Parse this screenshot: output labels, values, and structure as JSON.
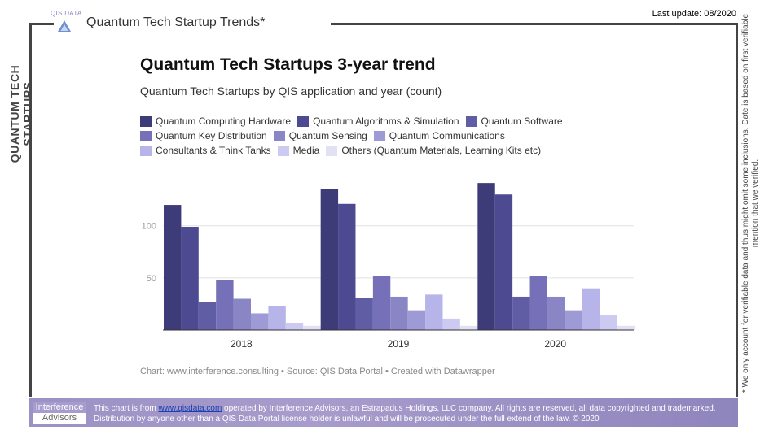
{
  "header": {
    "logo_text": "QIS DATA",
    "title": "Quantum Tech Startup Trends*",
    "last_update": "Last update: 08/2020"
  },
  "side_title": "QUANTUM TECH STARTUPS",
  "side_note": "* We only account for verifiable data and thus might omit some inclusions. Date is based on first verifiable mention that we verified.",
  "chart_data": {
    "type": "bar",
    "title": "Quantum Tech Startups 3-year trend",
    "subtitle": "Quantum Tech Startups by QIS application and year (count)",
    "categories": [
      "2018",
      "2019",
      "2020"
    ],
    "ylim": [
      0,
      145
    ],
    "yticks": [
      50,
      100
    ],
    "grid": true,
    "legend_position": "top",
    "series": [
      {
        "name": "Quantum Computing Hardware",
        "color": "#3d3b78",
        "values": [
          120,
          135,
          141
        ]
      },
      {
        "name": "Quantum Algorithms & Simulation",
        "color": "#4d4a92",
        "values": [
          99,
          121,
          130
        ]
      },
      {
        "name": "Quantum Software",
        "color": "#615da5",
        "values": [
          27,
          31,
          32
        ]
      },
      {
        "name": "Quantum Key Distribution",
        "color": "#7570b8",
        "values": [
          48,
          52,
          52
        ]
      },
      {
        "name": "Quantum Sensing",
        "color": "#8a86c6",
        "values": [
          30,
          32,
          32
        ]
      },
      {
        "name": "Quantum Communications",
        "color": "#9e9ad5",
        "values": [
          16,
          19,
          19
        ]
      },
      {
        "name": "Consultants & Think Tanks",
        "color": "#b7b4ea",
        "values": [
          23,
          34,
          40
        ]
      },
      {
        "name": "Media",
        "color": "#cccaf1",
        "values": [
          7,
          11,
          14
        ]
      },
      {
        "name": "Others (Quantum Materials, Learning Kits etc)",
        "color": "#e1e0f5",
        "values": [
          4,
          4,
          4
        ]
      }
    ],
    "footer": "Chart: www.interference.consulting • Source: QIS Data Portal • Created with Datawrapper"
  },
  "footer": {
    "logo_top": "Interference",
    "logo_bottom": "Advisors",
    "text_before_link": "This chart is from ",
    "link_text": "www.qisdata.com",
    "text_after_link": " operated by Interference Advisors, an Estrapadus Holdings, LLC company. All rights are reserved, all data copyrighted and trademarked. Distribution by anyone other than a QIS Data Portal license holder is unlawful and will be prosecuted under the full extend of the law. © 2020"
  }
}
